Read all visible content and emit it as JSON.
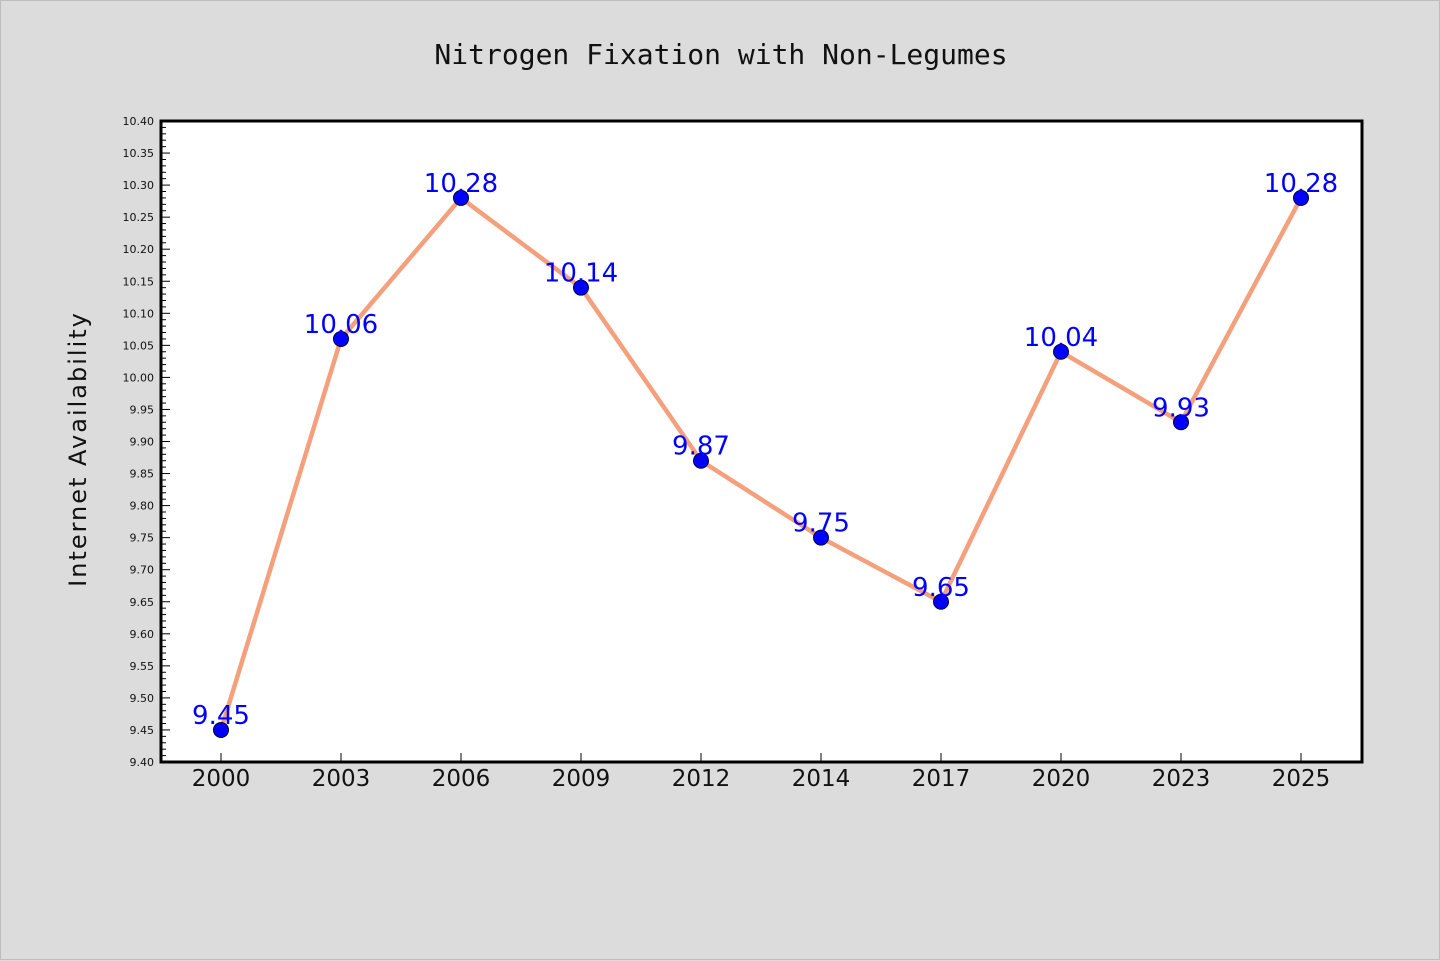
{
  "chart_data": {
    "type": "line",
    "title": "Nitrogen Fixation with Non-Legumes",
    "xlabel": "",
    "ylabel": "Internet Availability",
    "categories": [
      "2000",
      "2003",
      "2006",
      "2009",
      "2012",
      "2014",
      "2017",
      "2020",
      "2023",
      "2025"
    ],
    "series": [
      {
        "values": [
          9.45,
          10.06,
          10.28,
          10.14,
          9.87,
          9.75,
          9.65,
          10.04,
          9.93,
          10.28
        ]
      }
    ],
    "data_labels": [
      "9.45",
      "10.06",
      "10.28",
      "10.14",
      "9.87",
      "9.75",
      "9.65",
      "10.04",
      "9.93",
      "10.28"
    ],
    "ylim": [
      9.4,
      10.4
    ],
    "yticks": [
      "9.40",
      "9.45",
      "9.50",
      "9.55",
      "9.60",
      "9.65",
      "9.70",
      "9.75",
      "9.80",
      "9.85",
      "9.90",
      "9.95",
      "10.00",
      "10.05",
      "10.10",
      "10.15",
      "10.20",
      "10.25",
      "10.30",
      "10.35",
      "10.40"
    ],
    "grid": false,
    "legend": "none",
    "colors": {
      "line": "#f4a07c",
      "marker": "#0000ff",
      "marker_edge": "#000033",
      "data_label": "#0000ff",
      "plot_background": "#ffffff",
      "figure_background": "#dcdcdc"
    }
  }
}
